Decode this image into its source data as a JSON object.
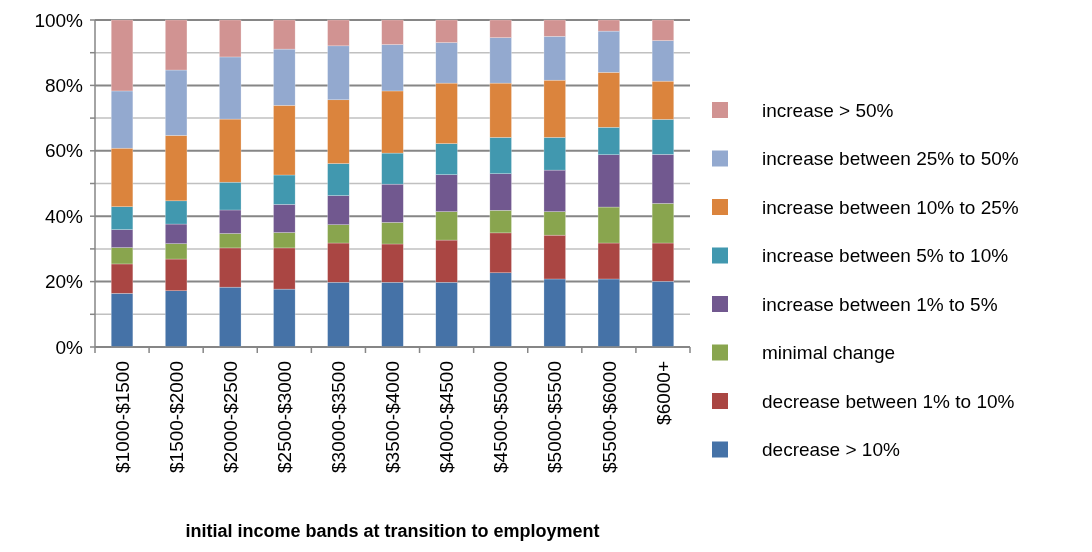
{
  "chart_data": {
    "type": "bar",
    "stacked": true,
    "xlabel": "initial income bands at transition to employment",
    "categories": [
      "$1000-$1500",
      "$1500-$2000",
      "$2000-$2500",
      "$2500-$3000",
      "$3000-$3500",
      "$3500-$4000",
      "$4000-$4500",
      "$4500-$5000",
      "$5000-$5500",
      "$5500-$6000",
      "$6000+"
    ],
    "series": [
      {
        "name": "decrease > 10%",
        "color": "#4572a7",
        "values": [
          16.4,
          17.2,
          18.3,
          17.7,
          19.8,
          19.8,
          19.8,
          22.7,
          20.8,
          20.8,
          20.1
        ]
      },
      {
        "name": "decrease between 1% to 10%",
        "color": "#aa4643",
        "values": [
          9.0,
          9.7,
          12.0,
          12.6,
          12.0,
          11.7,
          12.9,
          12.2,
          13.4,
          11.0,
          11.7
        ]
      },
      {
        "name": "minimal change",
        "color": "#89a54e",
        "values": [
          5.0,
          4.7,
          4.4,
          4.7,
          5.6,
          6.6,
          8.7,
          6.9,
          7.2,
          11.0,
          12.1
        ]
      },
      {
        "name": "increase between 1% to 5%",
        "color": "#71588f",
        "values": [
          5.5,
          6.0,
          7.2,
          8.6,
          8.9,
          11.7,
          11.3,
          11.2,
          12.7,
          16.0,
          15.0
        ]
      },
      {
        "name": "increase between 5% to 10%",
        "color": "#4198af",
        "values": [
          7.0,
          7.1,
          8.5,
          9.0,
          9.8,
          9.5,
          9.5,
          11.1,
          10.0,
          8.4,
          10.7
        ]
      },
      {
        "name": "increase between 10% to 25%",
        "color": "#db843d",
        "values": [
          17.9,
          20.0,
          19.3,
          21.3,
          19.5,
          19.0,
          18.5,
          16.6,
          17.5,
          16.8,
          11.7
        ]
      },
      {
        "name": "increase between 25% to 50%",
        "color": "#93a9cf",
        "values": [
          17.5,
          20.0,
          19.0,
          17.2,
          16.5,
          14.2,
          12.4,
          13.9,
          13.4,
          12.6,
          12.4
        ]
      },
      {
        "name": "increase > 50%",
        "color": "#d19392",
        "values": [
          21.7,
          15.3,
          11.3,
          8.9,
          7.9,
          7.5,
          6.9,
          5.4,
          5.0,
          3.4,
          6.3
        ]
      }
    ],
    "ylim": [
      0,
      100
    ],
    "yticks": [
      {
        "value": 0,
        "label": "0%"
      },
      {
        "value": 10,
        "label": null
      },
      {
        "value": 20,
        "label": "20%"
      },
      {
        "value": 30,
        "label": null
      },
      {
        "value": 40,
        "label": "40%"
      },
      {
        "value": 50,
        "label": null
      },
      {
        "value": 60,
        "label": "60%"
      },
      {
        "value": 70,
        "label": null
      },
      {
        "value": 80,
        "label": "80%"
      },
      {
        "value": 90,
        "label": null
      },
      {
        "value": 100,
        "label": "100%"
      }
    ],
    "grid": "y",
    "legend": "right"
  }
}
